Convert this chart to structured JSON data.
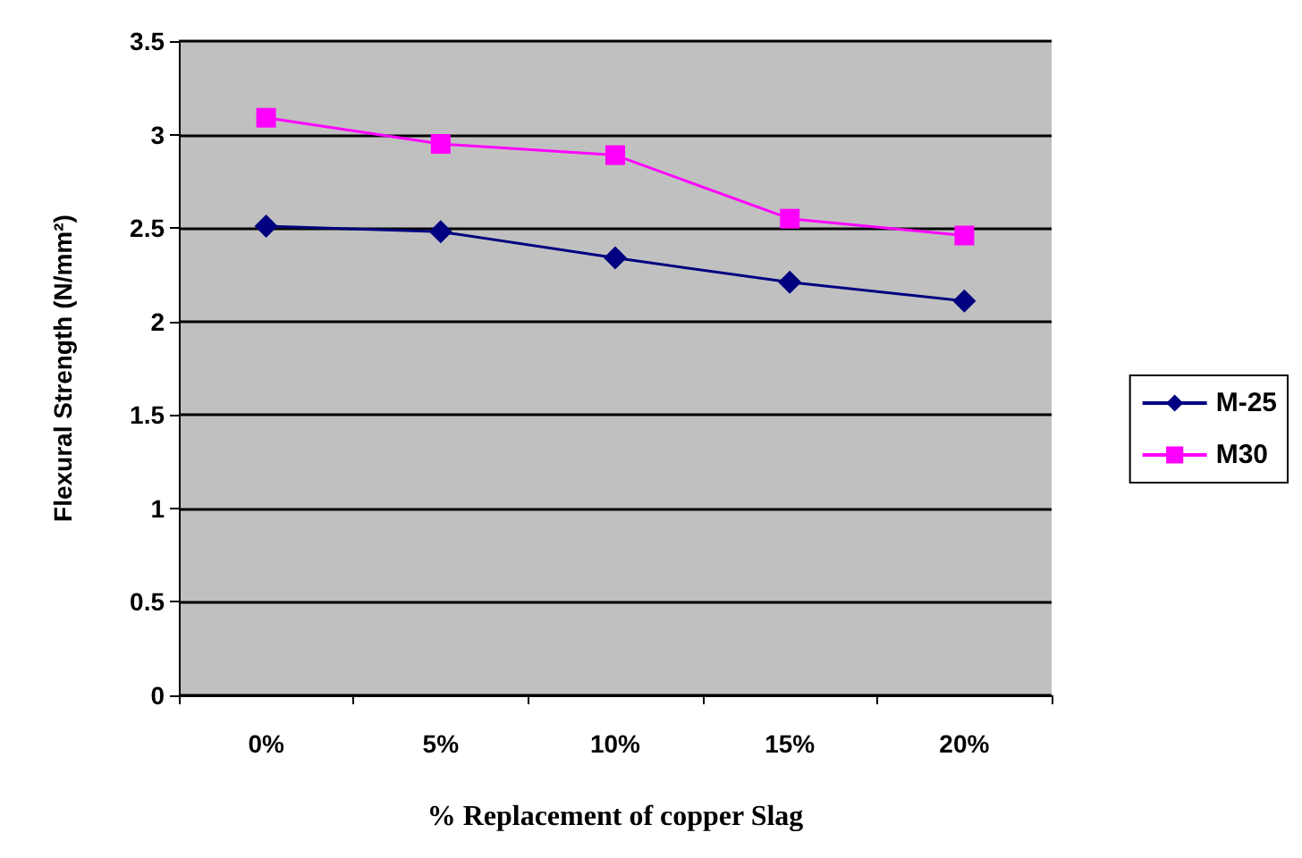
{
  "chart_data": {
    "type": "line",
    "xlabel": "% Replacement of copper Slag",
    "ylabel": "Flexural Strength (N/mm²)",
    "categories": [
      "0%",
      "5%",
      "10%",
      "15%",
      "20%"
    ],
    "series": [
      {
        "name": "M-25",
        "color": "#000080",
        "marker": "diamond",
        "values": [
          2.51,
          2.48,
          2.34,
          2.21,
          2.11
        ]
      },
      {
        "name": "M30",
        "color": "#ff00ff",
        "marker": "square",
        "values": [
          3.09,
          2.95,
          2.89,
          2.55,
          2.46
        ]
      }
    ],
    "ylim": [
      0,
      3.5
    ],
    "yticks": [
      0,
      0.5,
      1,
      1.5,
      2,
      2.5,
      3,
      3.5
    ],
    "grid": "y",
    "legend": "right"
  }
}
